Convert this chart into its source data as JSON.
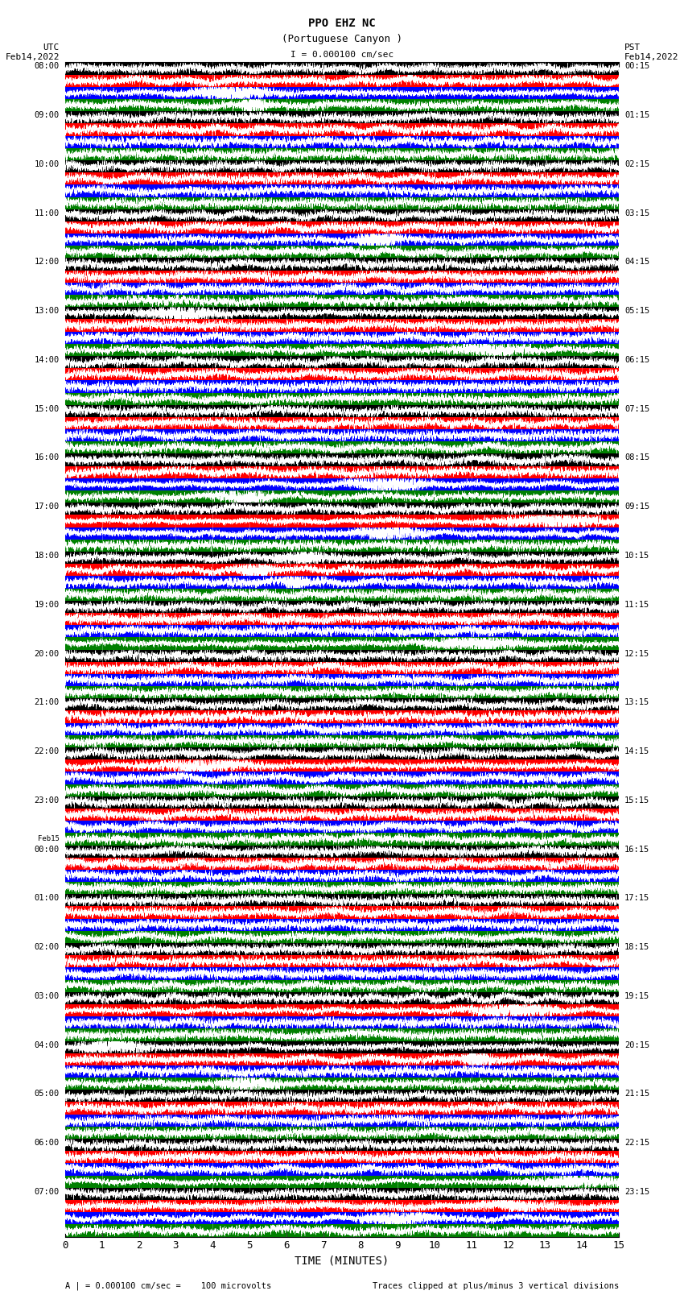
{
  "title_line1": "PPO EHZ NC",
  "title_line2": "(Portuguese Canyon )",
  "title_line3": "I = 0.000100 cm/sec",
  "left_header_line1": "UTC",
  "left_header_line2": "Feb14,2022",
  "right_header_line1": "PST",
  "right_header_line2": "Feb14,2022",
  "xlabel": "TIME (MINUTES)",
  "footer_left": "A | = 0.000100 cm/sec =    100 microvolts",
  "footer_right": "Traces clipped at plus/minus 3 vertical divisions",
  "utc_labels": [
    "08:00",
    "09:00",
    "10:00",
    "11:00",
    "12:00",
    "13:00",
    "14:00",
    "15:00",
    "16:00",
    "17:00",
    "18:00",
    "19:00",
    "20:00",
    "21:00",
    "22:00",
    "23:00",
    "Feb15\n00:00",
    "01:00",
    "02:00",
    "03:00",
    "04:00",
    "05:00",
    "06:00",
    "07:00"
  ],
  "pst_labels": [
    "00:15",
    "01:15",
    "02:15",
    "03:15",
    "04:15",
    "05:15",
    "06:15",
    "07:15",
    "08:15",
    "09:15",
    "10:15",
    "11:15",
    "12:15",
    "13:15",
    "14:15",
    "15:15",
    "16:15",
    "17:15",
    "18:15",
    "19:15",
    "20:15",
    "21:15",
    "22:15",
    "23:15"
  ],
  "n_rows": 24,
  "n_bands_per_row": 4,
  "band_colors": [
    "#000000",
    "#ff0000",
    "#0000ff",
    "#008000"
  ],
  "bg_color": "#ffffff",
  "xticks": [
    0,
    1,
    2,
    3,
    4,
    5,
    6,
    7,
    8,
    9,
    10,
    11,
    12,
    13,
    14,
    15
  ],
  "xmin": 0,
  "xmax": 15,
  "noise_seed": 42,
  "fig_width": 8.5,
  "fig_height": 16.13,
  "dpi": 100
}
